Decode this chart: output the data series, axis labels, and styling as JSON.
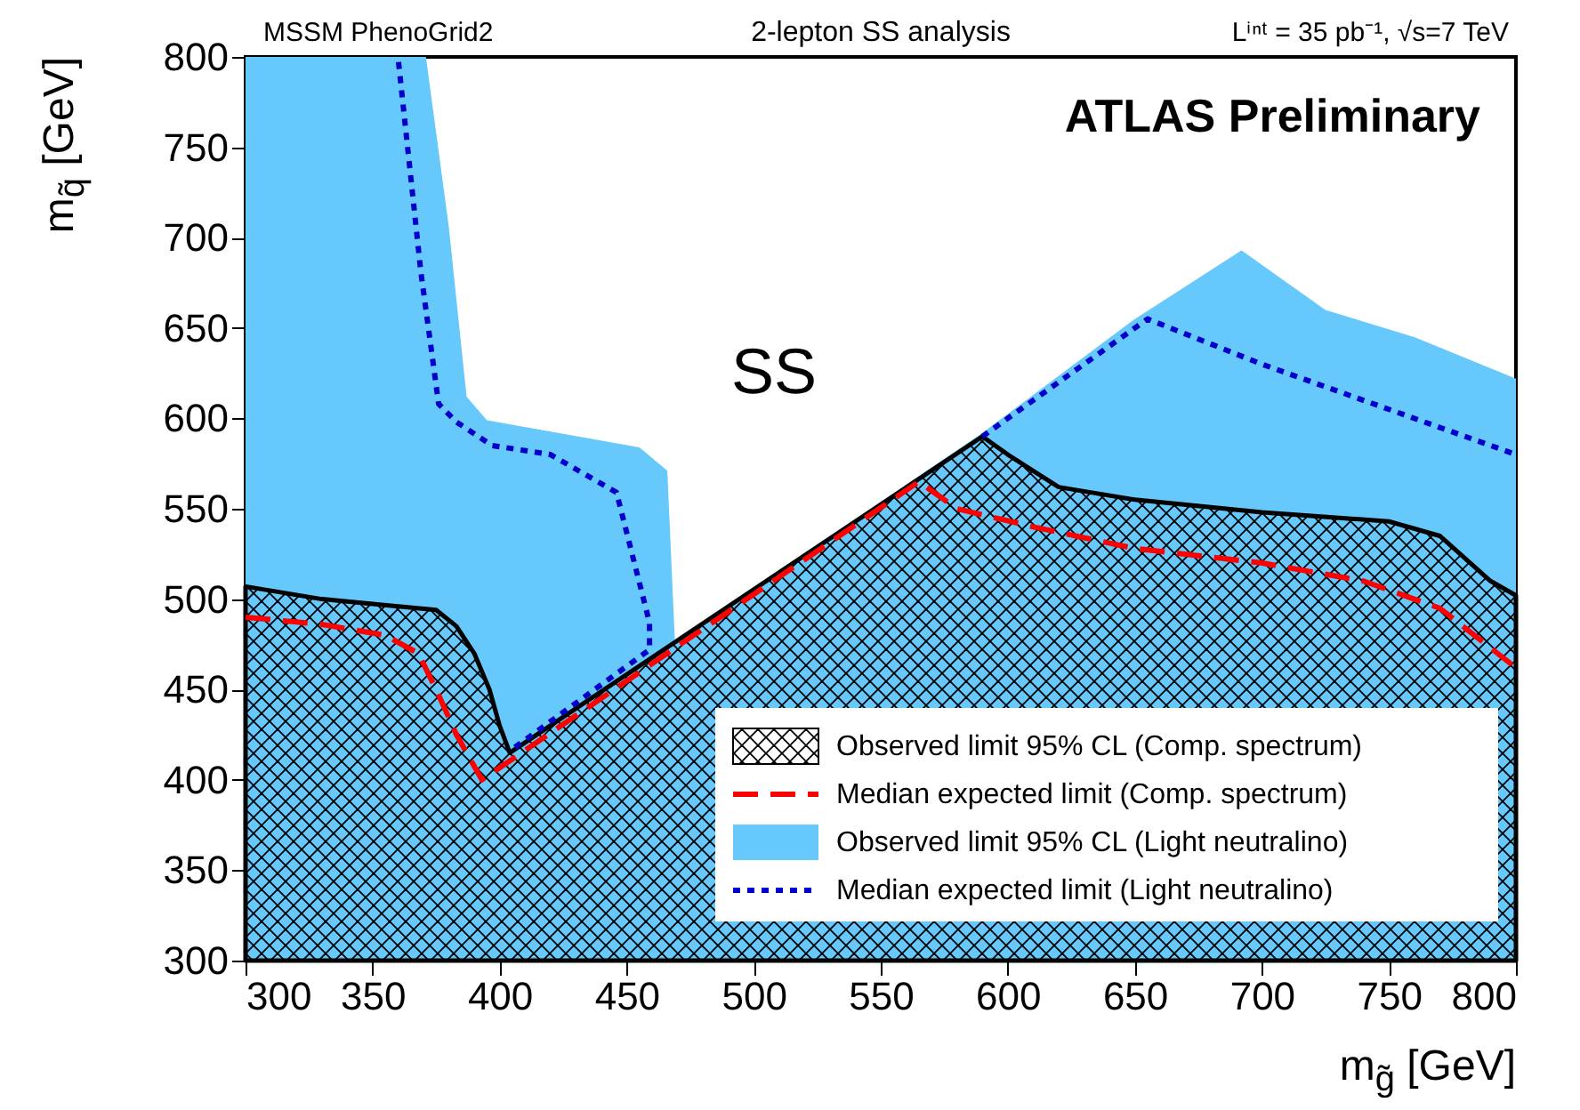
{
  "chart_data": {
    "type": "line",
    "title": "2-lepton SS analysis",
    "xlabel": "m$_{g̃}$ [GeV]",
    "ylabel": "m$_{q̃}$ [GeV]",
    "annotations": [
      "MSSM PhenoGrid2",
      "Lⁱⁿᵗ = 35 pb⁻¹, √s=7 TeV",
      "ATLAS Preliminary",
      "SS"
    ],
    "xlim": [
      300,
      800
    ],
    "ylim": [
      300,
      800
    ],
    "xticks": [
      300,
      350,
      400,
      450,
      500,
      550,
      600,
      650,
      700,
      750,
      800
    ],
    "yticks": [
      300,
      350,
      400,
      450,
      500,
      550,
      600,
      650,
      700,
      750,
      800
    ],
    "grid": false,
    "legend": "bottom right",
    "series": [
      {
        "name": "Observed limit 95% CL (Comp. spectrum)",
        "type": "area",
        "color": "#000000",
        "x": [
          300,
          330,
          360,
          375,
          383,
          390,
          396,
          400,
          404,
          590,
          600,
          620,
          650,
          700,
          750,
          770,
          790,
          800
        ],
        "values": [
          507,
          500,
          496,
          494,
          485,
          470,
          450,
          430,
          415,
          590,
          580,
          562,
          555,
          548,
          543,
          535,
          510,
          502
        ]
      },
      {
        "name": "Median expected limit (Comp. spectrum)",
        "line_style": "dashed",
        "color": "#ff0000",
        "x": [
          300,
          330,
          355,
          368,
          375,
          383,
          393,
          565,
          580,
          610,
          650,
          700,
          740,
          770,
          800
        ],
        "values": [
          490,
          486,
          480,
          470,
          450,
          425,
          400,
          565,
          550,
          540,
          528,
          520,
          510,
          495,
          462
        ]
      },
      {
        "name": "Observed limit 95% CL (Light neutralino)",
        "type": "area",
        "color": "#66c8fb",
        "x": [
          300,
          371,
          380,
          387,
          395,
          455,
          466,
          469,
          590,
          650,
          692,
          725,
          760,
          800
        ],
        "values": [
          800,
          800,
          706,
          612,
          599,
          584,
          571,
          476,
          592,
          655,
          693,
          660,
          645,
          622
        ]
      },
      {
        "name": "Median expected limit (Light neutralino)",
        "type": "line",
        "line_style": "dotted",
        "color": "#0000cc",
        "x": [
          406,
          459,
          459,
          446,
          420,
          397,
          383,
          376,
          369,
          360,
          null,
          590,
          655,
          700,
          750,
          800
        ],
        "values": [
          418,
          472,
          487,
          559,
          580,
          585,
          598,
          608,
          681,
          800,
          null,
          590,
          655,
          630,
          605,
          580
        ]
      }
    ]
  }
}
